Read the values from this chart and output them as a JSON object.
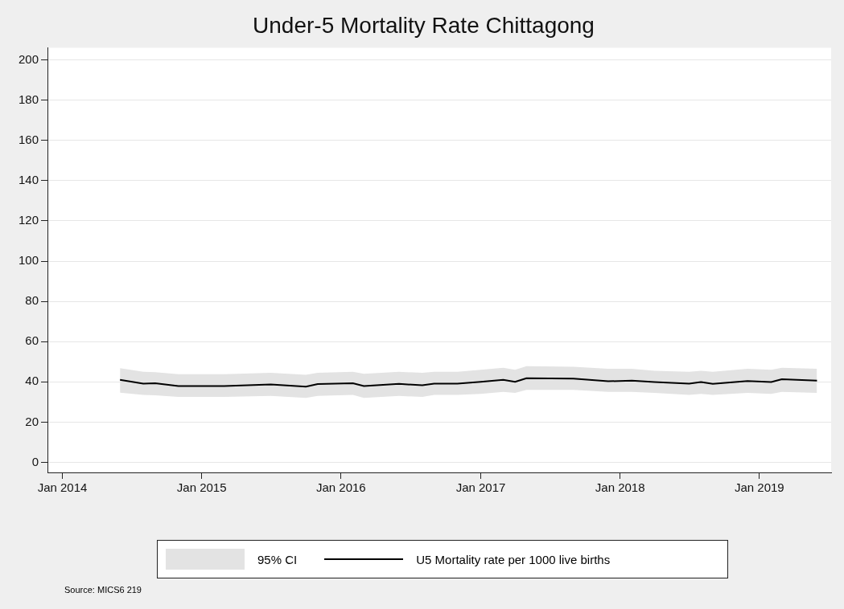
{
  "chart_data": {
    "type": "line",
    "title": "Under-5 Mortality Rate Chittagong",
    "x": [
      "2014-06",
      "2014-08",
      "2014-09",
      "2014-11",
      "2015-03",
      "2015-07",
      "2015-10",
      "2015-11",
      "2016-02",
      "2016-03",
      "2016-06",
      "2016-08",
      "2016-09",
      "2016-11",
      "2017-01",
      "2017-03",
      "2017-04",
      "2017-05",
      "2017-09",
      "2017-12",
      "2018-02",
      "2018-04",
      "2018-07",
      "2018-08",
      "2018-09",
      "2018-12",
      "2019-02",
      "2019-03",
      "2019-06"
    ],
    "series": [
      {
        "name": "U5 Mortality rate per 1000 live births",
        "color": "#000000",
        "lower": [
          34.6,
          33.5,
          33.3,
          32.5,
          32.5,
          33,
          32,
          33,
          33.5,
          32,
          33,
          32.5,
          33.5,
          33.5,
          34,
          35,
          34.5,
          36,
          36,
          35,
          35,
          34.5,
          33.5,
          34,
          33.5,
          34.5,
          34,
          35,
          34.5
        ],
        "upper": [
          46.8,
          45,
          44.8,
          43.8,
          43.8,
          44.5,
          43.5,
          44.5,
          45,
          44,
          45,
          44.5,
          45,
          45,
          46,
          47,
          46,
          47.8,
          47.5,
          46.5,
          46.5,
          45.5,
          45,
          45.5,
          45,
          46.5,
          46,
          47,
          46.5
        ],
        "values": [
          41,
          39.1,
          39.3,
          37.9,
          37.9,
          38.7,
          37.6,
          38.9,
          39.3,
          37.9,
          39,
          38.3,
          39.1,
          39.1,
          40,
          41,
          40,
          41.8,
          41.6,
          40.3,
          40.6,
          39.9,
          39.1,
          39.9,
          39,
          40.4,
          39.9,
          41.3,
          40.6
        ]
      }
    ],
    "xlim": [
      "2013-11-23",
      "2019-07-08"
    ],
    "xticks": [
      {
        "value": "2014-01",
        "label": "Jan 2014"
      },
      {
        "value": "2015-01",
        "label": "Jan 2015"
      },
      {
        "value": "2016-01",
        "label": "Jan 2016"
      },
      {
        "value": "2017-01",
        "label": "Jan 2017"
      },
      {
        "value": "2018-01",
        "label": "Jan 2018"
      },
      {
        "value": "2019-01",
        "label": "Jan 2019"
      }
    ],
    "ylim": [
      -5,
      206
    ],
    "yticks": [
      0,
      20,
      40,
      60,
      80,
      100,
      120,
      140,
      160,
      180,
      200
    ],
    "grid": "y",
    "legend": "bottom",
    "marker": "none",
    "line_style": "solid",
    "annotations": [
      "95% CI",
      "Source: MICS6 219"
    ]
  }
}
